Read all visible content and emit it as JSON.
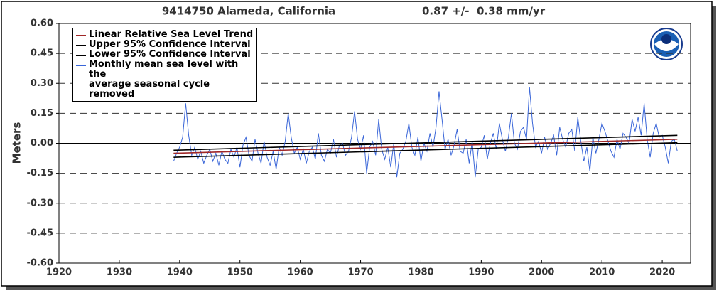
{
  "chart_data": {
    "type": "line",
    "title": "9414750 Alameda, California",
    "subtitle": "0.87 +/-  0.38 mm/yr",
    "ylabel": "Meters",
    "xlim": [
      1920,
      2024.7
    ],
    "ylim": [
      -0.6,
      0.6
    ],
    "xticks": [
      1920,
      1930,
      1940,
      1950,
      1960,
      1970,
      1980,
      1990,
      2000,
      2010,
      2020
    ],
    "yticks": [
      {
        "value": -0.6,
        "label": "-0.60"
      },
      {
        "value": -0.45,
        "label": "-0.45"
      },
      {
        "value": -0.3,
        "label": "-0.30"
      },
      {
        "value": -0.15,
        "label": "-0.15"
      },
      {
        "value": 0,
        "label": "0.00"
      },
      {
        "value": 0.15,
        "label": "0.15"
      },
      {
        "value": 0.3,
        "label": "0.30"
      },
      {
        "value": 0.45,
        "label": "0.45"
      },
      {
        "value": 0.6,
        "label": "0.60"
      }
    ],
    "grid": true,
    "legend": "upper-left",
    "series": [
      {
        "name": "Linear Relative Sea Level Trend",
        "color": "#a02828",
        "x": [
          1939,
          2022.5
        ],
        "values": [
          -0.05,
          0.02
        ]
      },
      {
        "name": "Upper 95% Confidence Interval",
        "color": "#000000",
        "x": [
          1939,
          2022.5
        ],
        "values": [
          -0.035,
          0.04
        ]
      },
      {
        "name": "Lower 95% Confidence Interval",
        "color": "#000000",
        "x": [
          1939,
          2022.5
        ],
        "values": [
          -0.07,
          0.003
        ]
      },
      {
        "name": "Monthly mean sea level with the\naverage seasonal cycle removed",
        "color": "#3a66d8",
        "x": [
          1939,
          1939.5,
          1940,
          1940.5,
          1941,
          1941.5,
          1942,
          1942.5,
          1943,
          1943.5,
          1944,
          1944.5,
          1945,
          1945.5,
          1946,
          1946.5,
          1947,
          1947.5,
          1948,
          1948.5,
          1949,
          1949.5,
          1950,
          1950.5,
          1951,
          1951.5,
          1952,
          1952.5,
          1953,
          1953.5,
          1954,
          1954.5,
          1955,
          1955.5,
          1956,
          1956.5,
          1957,
          1957.5,
          1958,
          1958.5,
          1959,
          1959.5,
          1960,
          1960.5,
          1961,
          1961.5,
          1962,
          1962.5,
          1963,
          1963.5,
          1964,
          1964.5,
          1965,
          1965.5,
          1966,
          1966.5,
          1967,
          1967.5,
          1968,
          1968.5,
          1969,
          1969.5,
          1970,
          1970.5,
          1971,
          1971.5,
          1972,
          1972.5,
          1973,
          1973.5,
          1974,
          1974.5,
          1975,
          1975.5,
          1976,
          1976.5,
          1977,
          1977.5,
          1978,
          1978.5,
          1979,
          1979.5,
          1980,
          1980.5,
          1981,
          1981.5,
          1982,
          1982.5,
          1983,
          1983.5,
          1984,
          1984.5,
          1985,
          1985.5,
          1986,
          1986.5,
          1987,
          1987.5,
          1988,
          1988.5,
          1989,
          1989.5,
          1990,
          1990.5,
          1991,
          1991.5,
          1992,
          1992.5,
          1993,
          1993.5,
          1994,
          1994.5,
          1995,
          1995.5,
          1996,
          1996.5,
          1997,
          1997.5,
          1998,
          1998.5,
          1999,
          1999.5,
          2000,
          2000.5,
          2001,
          2001.5,
          2002,
          2002.5,
          2003,
          2003.5,
          2004,
          2004.5,
          2005,
          2005.5,
          2006,
          2006.5,
          2007,
          2007.5,
          2008,
          2008.5,
          2009,
          2009.5,
          2010,
          2010.5,
          2011,
          2011.5,
          2012,
          2012.5,
          2013,
          2013.5,
          2014,
          2014.5,
          2015,
          2015.5,
          2016,
          2016.5,
          2017,
          2017.5,
          2018,
          2018.5,
          2019,
          2019.5,
          2020,
          2020.5,
          2021,
          2021.5,
          2022,
          2022.5
        ],
        "values": [
          -0.09,
          -0.05,
          -0.02,
          0.03,
          0.2,
          0.04,
          -0.06,
          -0.02,
          -0.08,
          -0.04,
          -0.1,
          -0.06,
          -0.03,
          -0.09,
          -0.05,
          -0.11,
          -0.04,
          -0.08,
          -0.1,
          -0.03,
          -0.07,
          -0.02,
          -0.12,
          -0.01,
          0.03,
          -0.06,
          -0.09,
          0.02,
          -0.05,
          -0.1,
          0.01,
          -0.07,
          -0.11,
          -0.04,
          -0.13,
          -0.02,
          -0.06,
          0.01,
          0.15,
          0.03,
          -0.05,
          -0.02,
          -0.08,
          -0.03,
          -0.1,
          -0.04,
          -0.02,
          -0.08,
          0.05,
          -0.06,
          -0.09,
          -0.03,
          -0.05,
          0.02,
          -0.07,
          -0.01,
          0.0,
          -0.06,
          -0.04,
          0.03,
          0.16,
          0.02,
          -0.03,
          0.04,
          -0.15,
          -0.02,
          0.01,
          -0.06,
          0.12,
          -0.03,
          -0.08,
          -0.02,
          -0.12,
          0.0,
          -0.17,
          -0.05,
          -0.03,
          0.01,
          0.1,
          -0.02,
          -0.06,
          0.03,
          -0.09,
          0.0,
          -0.04,
          0.05,
          -0.02,
          0.08,
          0.26,
          0.12,
          -0.03,
          0.02,
          -0.06,
          -0.01,
          0.07,
          -0.04,
          -0.05,
          0.02,
          -0.1,
          0.01,
          -0.17,
          -0.03,
          -0.02,
          0.04,
          -0.08,
          0.0,
          0.05,
          -0.03,
          0.1,
          0.02,
          -0.04,
          0.03,
          0.15,
          0.0,
          -0.03,
          0.06,
          0.08,
          0.02,
          0.28,
          0.1,
          -0.02,
          0.01,
          -0.05,
          0.03,
          -0.03,
          0.0,
          0.04,
          -0.06,
          0.08,
          0.02,
          -0.02,
          0.05,
          0.07,
          -0.04,
          0.13,
          0.01,
          -0.09,
          -0.02,
          -0.14,
          0.03,
          -0.05,
          0.02,
          0.1,
          0.06,
          0.01,
          -0.04,
          -0.07,
          0.02,
          -0.03,
          0.05,
          0.03,
          0.0,
          0.12,
          0.06,
          0.13,
          0.04,
          0.2,
          0.02,
          -0.07,
          0.05,
          0.1,
          0.03,
          0.04,
          -0.02,
          -0.1,
          0.01,
          0.02,
          -0.04
        ]
      }
    ]
  }
}
